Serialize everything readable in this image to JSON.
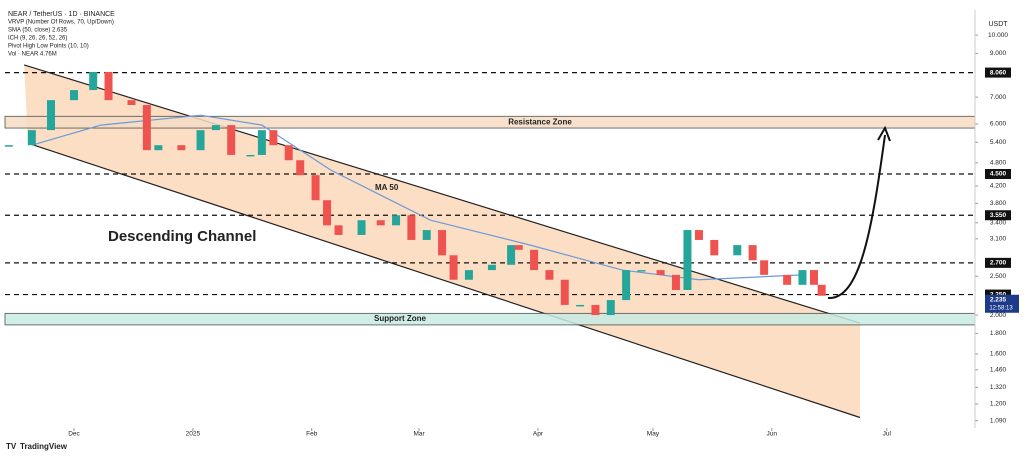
{
  "chart_data": {
    "type": "candlestick",
    "title": "NEAR / TetherUS · 1D · BINANCE",
    "indicators": [
      "VRVP (Number Of Rows, 70, Up/Down)",
      "SMA (50, close) 2.635",
      "ICH (9, 26, 26, 52, 26)",
      "Pivot High Low Points (10, 10)",
      "Vol · NEAR 4.76M"
    ],
    "currency": "USDT",
    "brand": "TradingView",
    "countdown": "12:58:13",
    "log_scale": true,
    "up_color": "#26a69a",
    "down_color": "#ef5350",
    "x": [
      1,
      7,
      12,
      18,
      23,
      27,
      33,
      37,
      40,
      46,
      51,
      55,
      59,
      64,
      67,
      70,
      74,
      77,
      81,
      84,
      87,
      93,
      98,
      102,
      106,
      110,
      114,
      117,
      121,
      127,
      132,
      134,
      138,
      142,
      146,
      150,
      154,
      158,
      162,
      166,
      171,
      175,
      178,
      181,
      185,
      191,
      195,
      198,
      204,
      208,
      211,
      213
    ],
    "values": [
      5.31,
      5.79,
      6.88,
      7.29,
      8.09,
      6.88,
      6.69,
      5.16,
      5.31,
      5.16,
      5.79,
      5.96,
      5.02,
      5.02,
      5.79,
      5.31,
      4.87,
      4.47,
      3.87,
      3.35,
      3.17,
      3.45,
      3.35,
      3.55,
      3.08,
      3.26,
      2.82,
      2.45,
      2.59,
      2.67,
      2.99,
      2.91,
      2.59,
      2.45,
      2.12,
      2.12,
      2.0,
      2.18,
      2.59,
      2.59,
      2.52,
      2.31,
      3.26,
      3.08,
      2.82,
      2.99,
      2.74,
      2.52,
      2.38,
      2.59,
      2.38,
      2.235
    ],
    "xlim": [
      0,
      253
    ],
    "xticks": [
      {
        "value": 18,
        "label": "Dec"
      },
      {
        "value": 49,
        "label": "2025"
      },
      {
        "value": 80,
        "label": "Feb"
      },
      {
        "value": 108,
        "label": "Mar"
      },
      {
        "value": 139,
        "label": "Apr"
      },
      {
        "value": 169,
        "label": "May"
      },
      {
        "value": 200,
        "label": "Jun"
      },
      {
        "value": 230,
        "label": "Jul"
      }
    ],
    "ylim": [
      1.045,
      11.55
    ],
    "yticks": [
      {
        "value": 10,
        "label": "10.000"
      },
      {
        "value": 9,
        "label": "9.000"
      },
      {
        "value": 7,
        "label": "7.000"
      },
      {
        "value": 6,
        "label": "6.000"
      },
      {
        "value": 5.4,
        "label": "5.400"
      },
      {
        "value": 4.8,
        "label": "4.800"
      },
      {
        "value": 4.2,
        "label": "4.200"
      },
      {
        "value": 3.8,
        "label": "3.800"
      },
      {
        "value": 3.4,
        "label": "3.400"
      },
      {
        "value": 3.1,
        "label": "3.100"
      },
      {
        "value": 2.5,
        "label": "2.500"
      },
      {
        "value": 2,
        "label": "2.000"
      },
      {
        "value": 1.8,
        "label": "1.800"
      },
      {
        "value": 1.6,
        "label": "1.600"
      },
      {
        "value": 1.46,
        "label": "1.460"
      },
      {
        "value": 1.32,
        "label": "1.320"
      },
      {
        "value": 1.2,
        "label": "1.200"
      },
      {
        "value": 1.09,
        "label": "1.090"
      }
    ],
    "levels": [
      {
        "value": 8.06,
        "label": "8.060"
      },
      {
        "value": 4.5,
        "label": "4.500"
      },
      {
        "value": 3.55,
        "label": "3.550"
      },
      {
        "value": 2.7,
        "label": "2.700"
      },
      {
        "value": 2.25,
        "label": "2.250"
      }
    ],
    "ma": {
      "name": "MA 50",
      "color": "#6a9bd8",
      "x": [
        7,
        25,
        51,
        67,
        85,
        111,
        137,
        161,
        181,
        208
      ],
      "values": [
        5.31,
        5.96,
        6.31,
        5.96,
        4.6,
        3.45,
        2.99,
        2.59,
        2.45,
        2.52
      ]
    },
    "zones": [
      {
        "name": "Resistance Zone",
        "range": [
          5.86,
          6.27
        ],
        "color": "#f6dcc4"
      },
      {
        "name": "Support Zone",
        "range": [
          1.89,
          2.02
        ],
        "color": "#c8ebe4"
      }
    ],
    "channel": {
      "name": "Descending Channel",
      "color": "#fbd3b1",
      "upper": {
        "x": [
          5,
          223
        ],
        "values": [
          8.42,
          1.91
        ]
      },
      "lower": {
        "x": [
          6,
          223
        ],
        "values": [
          5.37,
          1.11
        ]
      }
    }
  }
}
